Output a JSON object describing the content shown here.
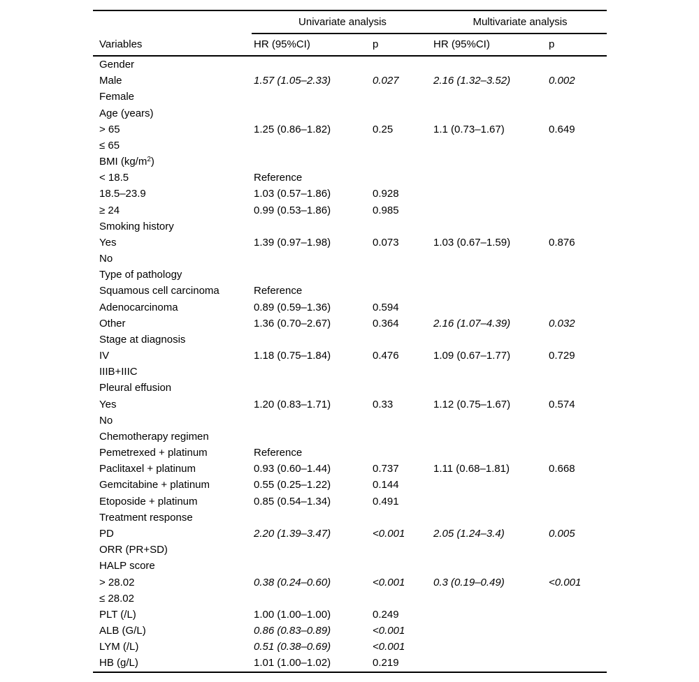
{
  "table": {
    "col_headers": {
      "variables": "Variables",
      "uni_group": "Univariate analysis",
      "multi_group": "Multivariate analysis",
      "uni_hr": "HR (95%CI)",
      "uni_p": "p",
      "multi_hr": "HR (95%CI)",
      "multi_p": "p"
    },
    "rows": [
      {
        "label": "Gender"
      },
      {
        "label": "Male",
        "uni_hr": "1.57 (1.05–2.33)",
        "uni_p": "0.027",
        "multi_hr": "2.16 (1.32–3.52)",
        "multi_p": "0.002",
        "uni_italic": true,
        "multi_italic": true
      },
      {
        "label": "Female"
      },
      {
        "label": "Age (years)"
      },
      {
        "label": "> 65",
        "uni_hr": "1.25 (0.86–1.82)",
        "uni_p": "0.25",
        "multi_hr": "1.1 (0.73–1.67)",
        "multi_p": "0.649"
      },
      {
        "label": "≤ 65"
      },
      {
        "label": "BMI (kg/m",
        "label_sup": "2",
        "label_end": ")"
      },
      {
        "label": "< 18.5",
        "uni_hr": "Reference"
      },
      {
        "label": "18.5–23.9",
        "uni_hr": "1.03 (0.57–1.86)",
        "uni_p": "0.928"
      },
      {
        "label": "≥ 24",
        "uni_hr": "0.99 (0.53–1.86)",
        "uni_p": "0.985"
      },
      {
        "label": "Smoking history"
      },
      {
        "label": "Yes",
        "uni_hr": "1.39 (0.97–1.98)",
        "uni_p": "0.073",
        "multi_hr": "1.03 (0.67–1.59)",
        "multi_p": "0.876"
      },
      {
        "label": "No"
      },
      {
        "label": "Type of pathology"
      },
      {
        "label": "Squamous cell carcinoma",
        "uni_hr": "Reference"
      },
      {
        "label": "Adenocarcinoma",
        "uni_hr": "0.89 (0.59–1.36)",
        "uni_p": "0.594"
      },
      {
        "label": "Other",
        "uni_hr": "1.36 (0.70–2.67)",
        "uni_p": "0.364",
        "multi_hr": "2.16 (1.07–4.39)",
        "multi_p": "0.032",
        "multi_italic": true
      },
      {
        "label": "Stage at diagnosis"
      },
      {
        "label": "IV",
        "uni_hr": "1.18 (0.75–1.84)",
        "uni_p": "0.476",
        "multi_hr": "1.09 (0.67–1.77)",
        "multi_p": "0.729"
      },
      {
        "label": "IIIB+IIIC"
      },
      {
        "label": "Pleural effusion"
      },
      {
        "label": "Yes",
        "uni_hr": "1.20 (0.83–1.71)",
        "uni_p": "0.33",
        "multi_hr": "1.12 (0.75–1.67)",
        "multi_p": "0.574"
      },
      {
        "label": "No"
      },
      {
        "label": "Chemotherapy regimen"
      },
      {
        "label": "Pemetrexed + platinum",
        "uni_hr": "Reference"
      },
      {
        "label": "Paclitaxel + platinum",
        "uni_hr": "0.93 (0.60–1.44)",
        "uni_p": "0.737",
        "multi_hr": "1.11 (0.68–1.81)",
        "multi_p": "0.668"
      },
      {
        "label": "Gemcitabine + platinum",
        "uni_hr": "0.55 (0.25–1.22)",
        "uni_p": "0.144"
      },
      {
        "label": "Etoposide + platinum",
        "uni_hr": "0.85 (0.54–1.34)",
        "uni_p": "0.491"
      },
      {
        "label": "Treatment response"
      },
      {
        "label": "PD",
        "uni_hr": "2.20 (1.39–3.47)",
        "uni_p": "<0.001",
        "multi_hr": "2.05 (1.24–3.4)",
        "multi_p": "0.005",
        "uni_italic": true,
        "multi_italic": true
      },
      {
        "label": "ORR (PR+SD)"
      },
      {
        "label": "HALP score"
      },
      {
        "label": "> 28.02",
        "uni_hr": "0.38 (0.24–0.60)",
        "uni_p": "<0.001",
        "multi_hr": "0.3 (0.19–0.49)",
        "multi_p": "<0.001",
        "uni_italic": true,
        "multi_italic": true
      },
      {
        "label": "≤ 28.02"
      },
      {
        "label": "PLT (/L)",
        "uni_hr": "1.00 (1.00–1.00)",
        "uni_p": "0.249"
      },
      {
        "label": "ALB (G/L)",
        "uni_hr": "0.86 (0.83–0.89)",
        "uni_p": "<0.001",
        "uni_italic": true
      },
      {
        "label": "LYM (/L)",
        "uni_hr": "0.51 (0.38–0.69)",
        "uni_p": "<0.001",
        "uni_italic": true
      },
      {
        "label": "HB (g/L)",
        "uni_hr": "1.01 (1.00–1.02)",
        "uni_p": "0.219"
      }
    ]
  }
}
